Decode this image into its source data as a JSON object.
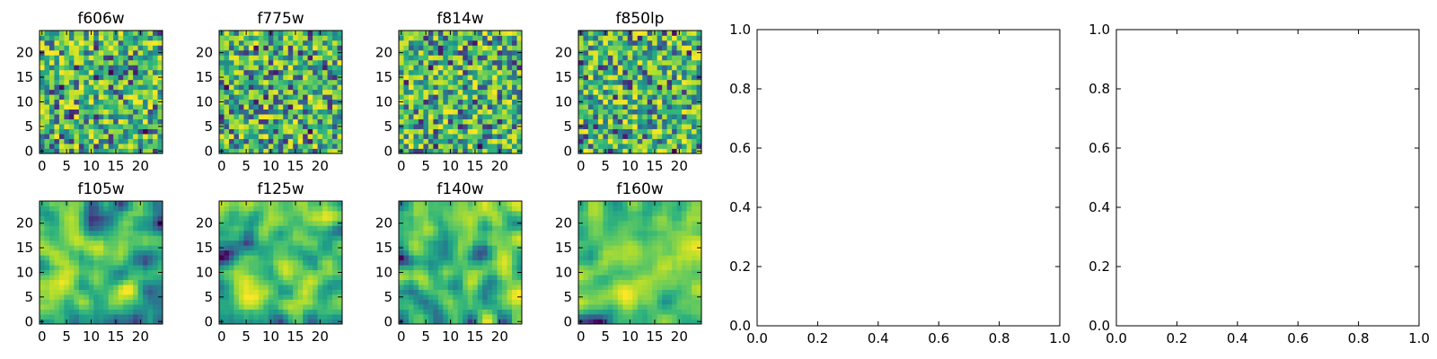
{
  "figure": {
    "background": "#ffffff",
    "axis_color": "#000000"
  },
  "chart_data": [
    {
      "type": "heatmap",
      "title": "f606w",
      "xlim": [
        0,
        24
      ],
      "ylim": [
        0,
        24
      ],
      "xticks": [
        "0",
        "5",
        "10",
        "15",
        "20"
      ],
      "yticks": [
        "0",
        "5",
        "10",
        "15",
        "20"
      ],
      "seed": 11,
      "smooth": 0,
      "colormap": "viridis"
    },
    {
      "type": "heatmap",
      "title": "f775w",
      "xlim": [
        0,
        24
      ],
      "ylim": [
        0,
        24
      ],
      "xticks": [
        "0",
        "5",
        "10",
        "15",
        "20"
      ],
      "yticks": [
        "0",
        "5",
        "10",
        "15",
        "20"
      ],
      "seed": 23,
      "smooth": 0,
      "colormap": "viridis"
    },
    {
      "type": "heatmap",
      "title": "f814w",
      "xlim": [
        0,
        24
      ],
      "ylim": [
        0,
        24
      ],
      "xticks": [
        "0",
        "5",
        "10",
        "15",
        "20"
      ],
      "yticks": [
        "0",
        "5",
        "10",
        "15",
        "20"
      ],
      "seed": 37,
      "smooth": 0,
      "colormap": "viridis"
    },
    {
      "type": "heatmap",
      "title": "f850lp",
      "xlim": [
        0,
        24
      ],
      "ylim": [
        0,
        24
      ],
      "xticks": [
        "0",
        "5",
        "10",
        "15",
        "20"
      ],
      "yticks": [
        "0",
        "5",
        "10",
        "15",
        "20"
      ],
      "seed": 41,
      "smooth": 0,
      "colormap": "viridis"
    },
    {
      "type": "line",
      "title": "",
      "xlim": [
        0,
        1
      ],
      "ylim": [
        0,
        1
      ],
      "xticks": [
        "0.0",
        "0.2",
        "0.4",
        "0.6",
        "0.8",
        "1.0"
      ],
      "yticks": [
        "0.0",
        "0.2",
        "0.4",
        "0.6",
        "0.8",
        "1.0"
      ],
      "series": []
    },
    {
      "type": "line",
      "title": "",
      "xlim": [
        0,
        1
      ],
      "ylim": [
        0,
        1
      ],
      "xticks": [
        "0.0",
        "0.2",
        "0.4",
        "0.6",
        "0.8",
        "1.0"
      ],
      "yticks": [
        "0.0",
        "0.2",
        "0.4",
        "0.6",
        "0.8",
        "1.0"
      ],
      "series": []
    },
    {
      "type": "heatmap",
      "title": "f105w",
      "xlim": [
        0,
        24
      ],
      "ylim": [
        0,
        24
      ],
      "xticks": [
        "0",
        "5",
        "10",
        "15",
        "20"
      ],
      "yticks": [
        "0",
        "5",
        "10",
        "15",
        "20"
      ],
      "seed": 53,
      "smooth": 2,
      "colormap": "viridis"
    },
    {
      "type": "heatmap",
      "title": "f125w",
      "xlim": [
        0,
        24
      ],
      "ylim": [
        0,
        24
      ],
      "xticks": [
        "0",
        "5",
        "10",
        "15",
        "20"
      ],
      "yticks": [
        "0",
        "5",
        "10",
        "15",
        "20"
      ],
      "seed": 67,
      "smooth": 2,
      "colormap": "viridis"
    },
    {
      "type": "heatmap",
      "title": "f140w",
      "xlim": [
        0,
        24
      ],
      "ylim": [
        0,
        24
      ],
      "xticks": [
        "0",
        "5",
        "10",
        "15",
        "20"
      ],
      "yticks": [
        "0",
        "5",
        "10",
        "15",
        "20"
      ],
      "seed": 79,
      "smooth": 2,
      "colormap": "viridis"
    },
    {
      "type": "heatmap",
      "title": "f160w",
      "xlim": [
        0,
        24
      ],
      "ylim": [
        0,
        24
      ],
      "xticks": [
        "0",
        "5",
        "10",
        "15",
        "20"
      ],
      "yticks": [
        "0",
        "5",
        "10",
        "15",
        "20"
      ],
      "seed": 97,
      "smooth": 2,
      "colormap": "viridis"
    }
  ]
}
